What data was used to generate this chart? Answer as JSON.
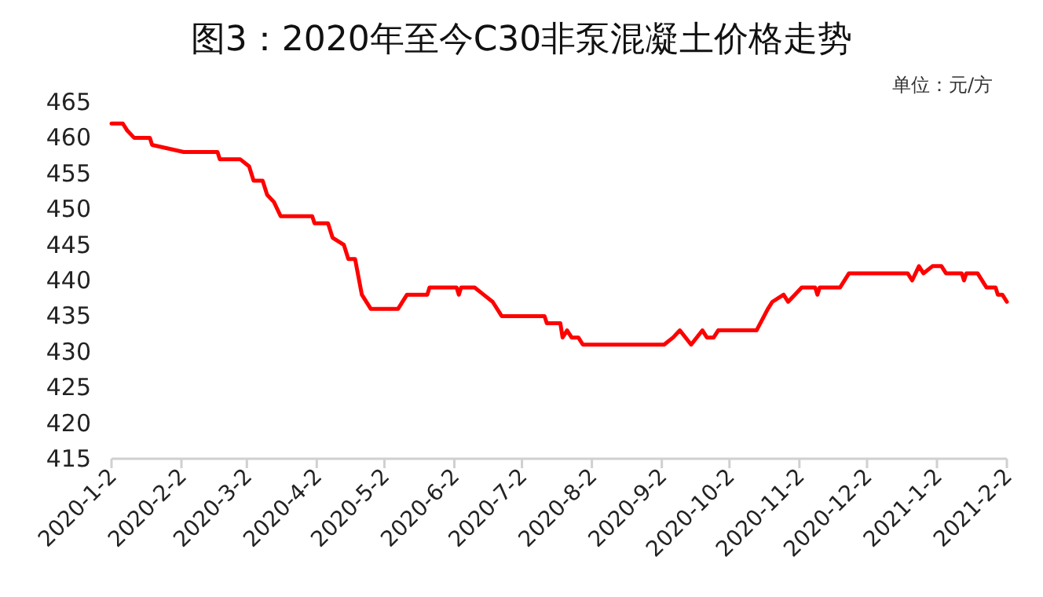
{
  "chart_data": {
    "type": "line",
    "title": "图3：2020年至今C30非泵混凝土价格走势",
    "annotations": [
      "单位：元/方"
    ],
    "x": [
      "2020-01-02",
      "2020-01-07",
      "2020-01-09",
      "2020-01-12",
      "2020-01-19",
      "2020-01-20",
      "2020-02-03",
      "2020-02-18",
      "2020-02-19",
      "2020-02-28",
      "2020-03-03",
      "2020-03-05",
      "2020-03-09",
      "2020-03-11",
      "2020-03-14",
      "2020-03-17",
      "2020-03-31",
      "2020-04-01",
      "2020-04-07",
      "2020-04-09",
      "2020-04-14",
      "2020-04-16",
      "2020-04-19",
      "2020-04-22",
      "2020-04-26",
      "2020-05-08",
      "2020-05-12",
      "2020-05-21",
      "2020-05-22",
      "2020-06-03",
      "2020-06-04",
      "2020-06-05",
      "2020-06-11",
      "2020-06-15",
      "2020-06-19",
      "2020-06-23",
      "2020-06-27",
      "2020-07-12",
      "2020-07-13",
      "2020-07-19",
      "2020-07-20",
      "2020-07-22",
      "2020-07-24",
      "2020-07-27",
      "2020-07-29",
      "2020-09-03",
      "2020-09-07",
      "2020-09-10",
      "2020-09-15",
      "2020-09-20",
      "2020-09-22",
      "2020-09-25",
      "2020-09-27",
      "2020-10-14",
      "2020-10-19",
      "2020-10-21",
      "2020-10-26",
      "2020-10-28",
      "2020-10-31",
      "2020-11-03",
      "2020-11-09",
      "2020-11-10",
      "2020-11-11",
      "2020-11-20",
      "2020-11-24",
      "2020-12-20",
      "2020-12-22",
      "2020-12-25",
      "2020-12-27",
      "2020-12-31",
      "2021-01-04",
      "2021-01-06",
      "2021-01-13",
      "2021-01-14",
      "2021-01-15",
      "2021-01-20",
      "2021-01-24",
      "2021-01-28",
      "2021-01-29",
      "2021-01-31",
      "2021-02-02"
    ],
    "series": [
      {
        "color": "#ff0000",
        "values": [
          462,
          462,
          461,
          460,
          460,
          459,
          458,
          458,
          457,
          457,
          456,
          454,
          454,
          452,
          451,
          449,
          449,
          448,
          448,
          446,
          445,
          443,
          443,
          438,
          436,
          436,
          438,
          438,
          439,
          439,
          438,
          439,
          439,
          438,
          437,
          435,
          435,
          435,
          434,
          434,
          432,
          433,
          432,
          432,
          431,
          431,
          432,
          433,
          431,
          433,
          432,
          432,
          433,
          433,
          436,
          437,
          438,
          437,
          438,
          439,
          439,
          438,
          439,
          439,
          441,
          441,
          440,
          442,
          441,
          442,
          442,
          441,
          441,
          440,
          441,
          441,
          439,
          439,
          438,
          438,
          437
        ]
      }
    ],
    "xlim": [
      "2020-01-02",
      "2021-02-02"
    ],
    "xticks": [
      {
        "value": "2020-01-02",
        "label": "2020-1-2"
      },
      {
        "value": "2020-02-02",
        "label": "2020-2-2"
      },
      {
        "value": "2020-03-02",
        "label": "2020-3-2"
      },
      {
        "value": "2020-04-02",
        "label": "2020-4-2"
      },
      {
        "value": "2020-05-02",
        "label": "2020-5-2"
      },
      {
        "value": "2020-06-02",
        "label": "2020-6-2"
      },
      {
        "value": "2020-07-02",
        "label": "2020-7-2"
      },
      {
        "value": "2020-08-02",
        "label": "2020-8-2"
      },
      {
        "value": "2020-09-02",
        "label": "2020-9-2"
      },
      {
        "value": "2020-10-02",
        "label": "2020-10-2"
      },
      {
        "value": "2020-11-02",
        "label": "2020-11-2"
      },
      {
        "value": "2020-12-02",
        "label": "2020-12-2"
      },
      {
        "value": "2021-01-02",
        "label": "2021-1-2"
      },
      {
        "value": "2021-02-02",
        "label": "2021-2-2"
      }
    ],
    "ylim": [
      415,
      465
    ],
    "yticks": [
      415,
      420,
      425,
      430,
      435,
      440,
      445,
      450,
      455,
      460,
      465
    ],
    "marker": "none",
    "line_style": "solid",
    "grid": false
  }
}
